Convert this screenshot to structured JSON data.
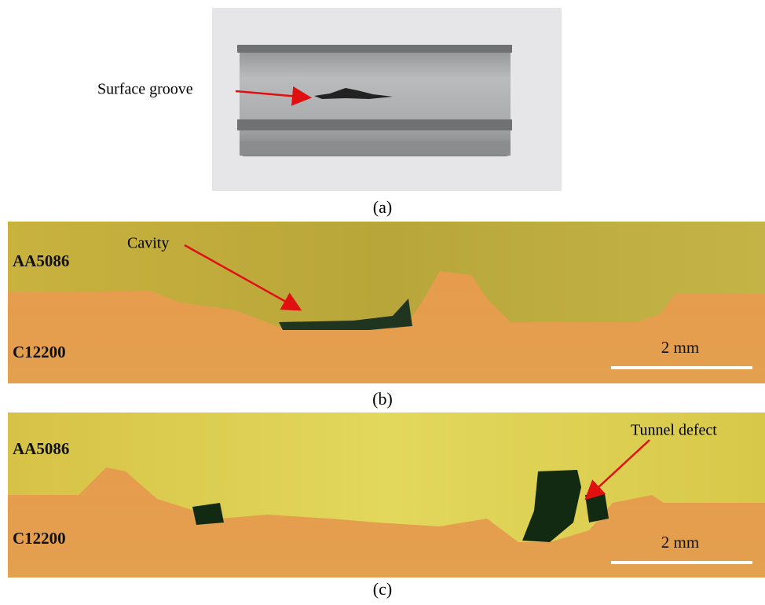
{
  "panels": [
    {
      "label": "(a)",
      "annotation": "Surface groove"
    },
    {
      "label": "(b)",
      "top_material": "AA5086",
      "bottom_material": "C12200",
      "annotation": "Cavity",
      "scale_bar": "2 mm"
    },
    {
      "label": "(c)",
      "top_material": "AA5086",
      "bottom_material": "C12200",
      "annotation": "Tunnel defect",
      "scale_bar": "2 mm"
    }
  ]
}
